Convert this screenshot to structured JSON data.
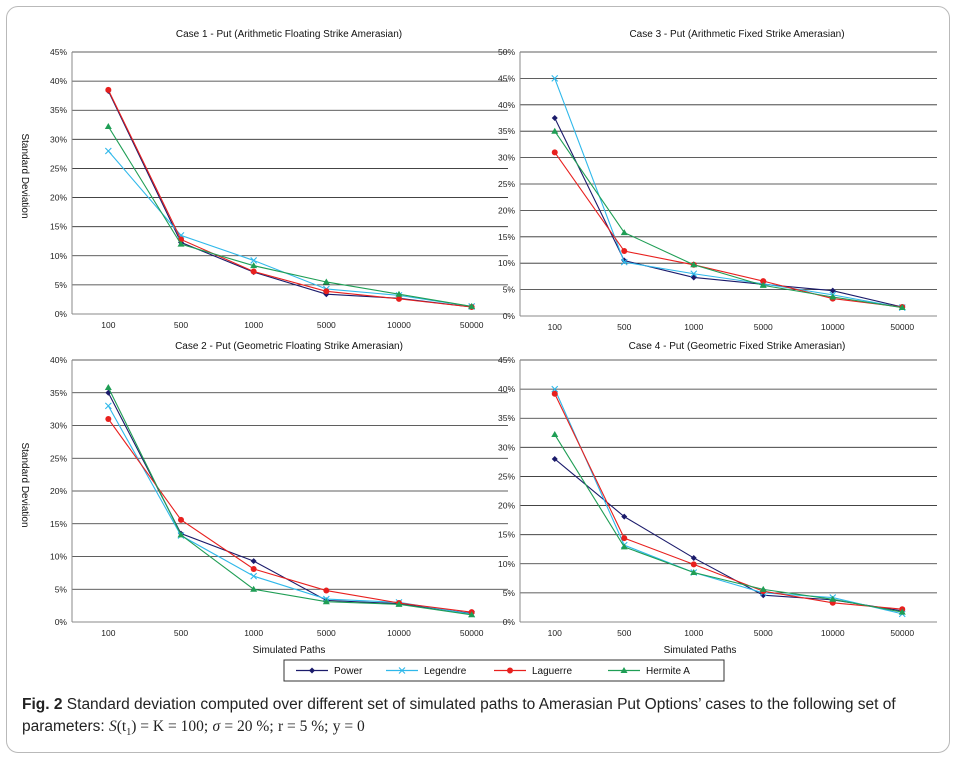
{
  "figure": {
    "caption_label": "Fig. 2",
    "caption_text": "Standard deviation computed over different set of simulated paths to Amerasian Put Options’ cases to the following set of parameters:",
    "caption_params": {
      "s_t1": "S",
      "t1": "(t",
      "t1_sub": "1",
      "eq_k": ") = K = 100;",
      "sigma": "σ",
      "sigma_val": "= 20 %;",
      "rate": "r = 5 %;",
      "yield": "y = 0"
    }
  },
  "legend": {
    "items": [
      {
        "name": "Power",
        "color": "#1b1b6b",
        "marker": "diamond"
      },
      {
        "name": "Legendre",
        "color": "#2fb8ea",
        "marker": "x"
      },
      {
        "name": "Laguerre",
        "color": "#e8201e",
        "marker": "circle"
      },
      {
        "name": "Hermite A",
        "color": "#1f9e55",
        "marker": "triangle"
      }
    ]
  },
  "chart_data": [
    {
      "type": "line",
      "title": "Case 1 - Put (Arithmetic Floating Strike Amerasian)",
      "xlabel": "",
      "ylabel": "Standard Deviation",
      "categories": [
        "100",
        "500",
        "1000",
        "5000",
        "10000",
        "50000"
      ],
      "ylim": [
        0,
        45
      ],
      "yticks": [
        "0%",
        "5%",
        "10%",
        "15%",
        "20%",
        "25%",
        "30%",
        "35%",
        "40%",
        "45%"
      ],
      "grid": true,
      "series": [
        {
          "name": "Power",
          "values": [
            38.3,
            12.3,
            7.2,
            3.4,
            2.7,
            1.2
          ]
        },
        {
          "name": "Legendre",
          "values": [
            28.0,
            13.5,
            9.2,
            4.3,
            3.2,
            1.3
          ]
        },
        {
          "name": "Laguerre",
          "values": [
            38.5,
            12.8,
            7.3,
            3.9,
            2.6,
            1.2
          ]
        },
        {
          "name": "Hermite A",
          "values": [
            32.2,
            12.0,
            8.3,
            5.5,
            3.4,
            1.3
          ]
        }
      ]
    },
    {
      "type": "line",
      "title": "Case 3 - Put (Arithmetic Fixed Strike Amerasian)",
      "xlabel": "",
      "ylabel": "",
      "categories": [
        "100",
        "500",
        "1000",
        "5000",
        "10000",
        "50000"
      ],
      "ylim": [
        0,
        50
      ],
      "yticks": [
        "0%",
        "5%",
        "10%",
        "15%",
        "20%",
        "25%",
        "30%",
        "35%",
        "40%",
        "45%",
        "50%"
      ],
      "grid": true,
      "series": [
        {
          "name": "Power",
          "values": [
            37.5,
            10.5,
            7.3,
            6.0,
            4.8,
            1.7
          ]
        },
        {
          "name": "Legendre",
          "values": [
            45.0,
            10.2,
            8.0,
            6.1,
            4.0,
            1.6
          ]
        },
        {
          "name": "Laguerre",
          "values": [
            31.0,
            12.3,
            9.7,
            6.6,
            3.3,
            1.7
          ]
        },
        {
          "name": "Hermite A",
          "values": [
            35.0,
            15.8,
            9.7,
            5.8,
            3.6,
            1.6
          ]
        }
      ]
    },
    {
      "type": "line",
      "title": "Case 2 - Put (Geometric Floating Strike Amerasian)",
      "xlabel": "Simulated Paths",
      "ylabel": "Standard Deviation",
      "categories": [
        "100",
        "500",
        "1000",
        "5000",
        "10000",
        "50000"
      ],
      "ylim": [
        0,
        40
      ],
      "yticks": [
        "0%",
        "5%",
        "10%",
        "15%",
        "20%",
        "25%",
        "30%",
        "35%",
        "40%"
      ],
      "grid": true,
      "series": [
        {
          "name": "Power",
          "values": [
            35.0,
            13.5,
            9.3,
            3.3,
            2.8,
            1.3
          ]
        },
        {
          "name": "Legendre",
          "values": [
            33.0,
            13.2,
            7.0,
            3.5,
            3.0,
            1.2
          ]
        },
        {
          "name": "Laguerre",
          "values": [
            31.0,
            15.6,
            8.1,
            4.8,
            2.9,
            1.5
          ]
        },
        {
          "name": "Hermite A",
          "values": [
            35.8,
            13.3,
            5.0,
            3.1,
            2.7,
            1.1
          ]
        }
      ]
    },
    {
      "type": "line",
      "title": "Case 4 - Put (Geometric Fixed Strike Amerasian)",
      "xlabel": "Simulated Paths",
      "ylabel": "",
      "categories": [
        "100",
        "500",
        "1000",
        "5000",
        "10000",
        "50000"
      ],
      "ylim": [
        0,
        45
      ],
      "yticks": [
        "0%",
        "5%",
        "10%",
        "15%",
        "20%",
        "25%",
        "30%",
        "35%",
        "40%",
        "45%"
      ],
      "grid": true,
      "series": [
        {
          "name": "Power",
          "values": [
            28.0,
            18.1,
            11.0,
            4.6,
            3.8,
            1.9
          ]
        },
        {
          "name": "Legendre",
          "values": [
            40.0,
            13.2,
            8.5,
            5.0,
            4.2,
            1.4
          ]
        },
        {
          "name": "Laguerre",
          "values": [
            39.2,
            14.4,
            9.9,
            5.3,
            3.3,
            2.2
          ]
        },
        {
          "name": "Hermite A",
          "values": [
            32.2,
            12.9,
            8.5,
            5.6,
            3.9,
            1.7
          ]
        }
      ]
    }
  ]
}
